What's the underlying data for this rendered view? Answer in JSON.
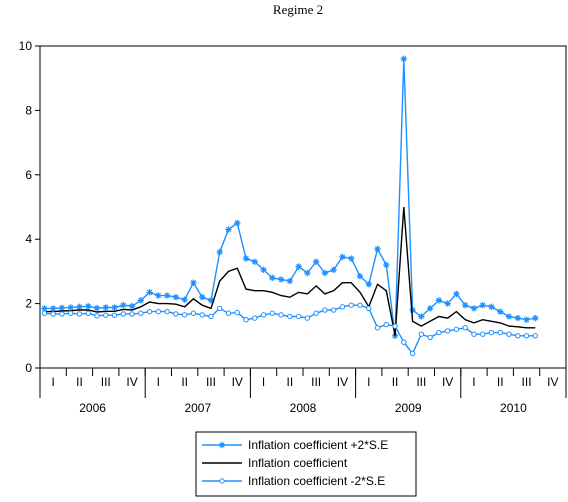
{
  "chart_data": {
    "type": "line",
    "title": "Regime 2",
    "xlabel": "",
    "ylabel": "",
    "ylim": [
      0,
      10
    ],
    "y_ticks": [
      0,
      2,
      4,
      6,
      8,
      10
    ],
    "grid": false,
    "legend_placement": "bottom",
    "x_start": "2006-01",
    "x_end": "2010-12",
    "quarter_labels": [
      "I",
      "II",
      "III",
      "IV",
      "I",
      "II",
      "III",
      "IV",
      "I",
      "II",
      "III",
      "IV",
      "I",
      "II",
      "III",
      "IV",
      "I",
      "II",
      "III",
      "IV"
    ],
    "year_labels": [
      "2006",
      "2007",
      "2008",
      "2009",
      "2010"
    ],
    "months": [
      "2006-01",
      "2006-02",
      "2006-03",
      "2006-04",
      "2006-05",
      "2006-06",
      "2006-07",
      "2006-08",
      "2006-09",
      "2006-10",
      "2006-11",
      "2006-12",
      "2007-01",
      "2007-02",
      "2007-03",
      "2007-04",
      "2007-05",
      "2007-06",
      "2007-07",
      "2007-08",
      "2007-09",
      "2007-10",
      "2007-11",
      "2007-12",
      "2008-01",
      "2008-02",
      "2008-03",
      "2008-04",
      "2008-05",
      "2008-06",
      "2008-07",
      "2008-08",
      "2008-09",
      "2008-10",
      "2008-11",
      "2008-12",
      "2009-01",
      "2009-02",
      "2009-03",
      "2009-04",
      "2009-05",
      "2009-06",
      "2009-07",
      "2009-08",
      "2009-09",
      "2009-10",
      "2009-11",
      "2009-12",
      "2010-01",
      "2010-02",
      "2010-03",
      "2010-04",
      "2010-05",
      "2010-06",
      "2010-07",
      "2010-08",
      "2010-09"
    ],
    "series": [
      {
        "name": "Inflation coefficient +2*S.E",
        "color": "#1e90ff",
        "marker": "star",
        "values": [
          1.85,
          1.85,
          1.87,
          1.88,
          1.9,
          1.92,
          1.86,
          1.88,
          1.88,
          1.95,
          1.92,
          2.1,
          2.35,
          2.25,
          2.25,
          2.2,
          2.12,
          2.65,
          2.2,
          2.1,
          3.6,
          4.3,
          4.5,
          3.4,
          3.3,
          3.05,
          2.8,
          2.75,
          2.7,
          3.15,
          2.95,
          3.3,
          2.95,
          3.05,
          3.45,
          3.4,
          2.85,
          2.6,
          3.7,
          3.2,
          1.0,
          9.6,
          1.8,
          1.6,
          1.85,
          2.1,
          2.0,
          2.3,
          1.95,
          1.85,
          1.95,
          1.9,
          1.75,
          1.6,
          1.55,
          1.5,
          1.55
        ]
      },
      {
        "name": "Inflation coefficient",
        "color": "#000000",
        "marker": "none",
        "values": [
          1.75,
          1.75,
          1.77,
          1.78,
          1.8,
          1.8,
          1.74,
          1.76,
          1.76,
          1.82,
          1.8,
          1.9,
          2.05,
          2.0,
          2.0,
          1.98,
          1.9,
          2.15,
          1.95,
          1.85,
          2.7,
          3.0,
          3.1,
          2.45,
          2.4,
          2.4,
          2.35,
          2.25,
          2.2,
          2.35,
          2.3,
          2.55,
          2.3,
          2.4,
          2.65,
          2.65,
          2.35,
          1.9,
          2.6,
          2.4,
          1.0,
          5.0,
          1.45,
          1.3,
          1.45,
          1.6,
          1.55,
          1.75,
          1.5,
          1.4,
          1.5,
          1.45,
          1.4,
          1.3,
          1.28,
          1.25,
          1.25
        ]
      },
      {
        "name": "Inflation coefficient -2*S.E",
        "color": "#1e90ff",
        "marker": "circle",
        "values": [
          1.7,
          1.68,
          1.68,
          1.7,
          1.68,
          1.7,
          1.62,
          1.64,
          1.64,
          1.68,
          1.68,
          1.7,
          1.75,
          1.75,
          1.75,
          1.68,
          1.65,
          1.7,
          1.65,
          1.6,
          1.85,
          1.7,
          1.72,
          1.5,
          1.55,
          1.65,
          1.7,
          1.65,
          1.6,
          1.6,
          1.55,
          1.7,
          1.8,
          1.8,
          1.9,
          1.95,
          1.95,
          1.85,
          1.25,
          1.35,
          1.3,
          0.8,
          0.45,
          1.05,
          0.95,
          1.1,
          1.15,
          1.2,
          1.25,
          1.05,
          1.05,
          1.1,
          1.1,
          1.05,
          1.0,
          1.0,
          1.0
        ]
      }
    ]
  }
}
